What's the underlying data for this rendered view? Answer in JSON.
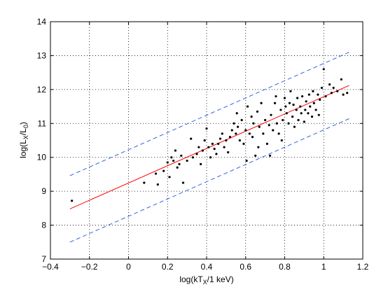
{
  "chart_data": {
    "type": "scatter",
    "xlabel": {
      "pre": "log(kT",
      "sub": "X",
      "post": "/1 keV)"
    },
    "ylabel": {
      "pre": "log(L",
      "sub1": "X",
      "mid": "/L",
      "sub2": "0",
      "post": ")"
    },
    "xlim": [
      -0.4,
      1.2
    ],
    "ylim": [
      7,
      14
    ],
    "xticks": [
      -0.4,
      -0.2,
      0,
      0.2,
      0.4,
      0.6,
      0.8,
      1,
      1.2
    ],
    "yticks": [
      7,
      8,
      9,
      10,
      11,
      12,
      13,
      14
    ],
    "xtick_labels": [
      "−0.4",
      "−0.2",
      "0",
      "0.2",
      "0.4",
      "0.6",
      "0.8",
      "1",
      "1.2"
    ],
    "ytick_labels": [
      "7",
      "8",
      "9",
      "10",
      "11",
      "12",
      "13",
      "14"
    ],
    "grid": true,
    "series": [
      {
        "kind": "points",
        "color": "#000000",
        "points": [
          [
            -0.29,
            8.72
          ],
          [
            0.08,
            9.25
          ],
          [
            0.14,
            9.52
          ],
          [
            0.15,
            9.2
          ],
          [
            0.18,
            9.6
          ],
          [
            0.2,
            9.85
          ],
          [
            0.21,
            9.42
          ],
          [
            0.22,
            10.0
          ],
          [
            0.23,
            9.9
          ],
          [
            0.24,
            10.2
          ],
          [
            0.25,
            9.7
          ],
          [
            0.26,
            9.8
          ],
          [
            0.27,
            10.05
          ],
          [
            0.28,
            9.25
          ],
          [
            0.3,
            9.9
          ],
          [
            0.32,
            10.55
          ],
          [
            0.33,
            10.0
          ],
          [
            0.35,
            10.1
          ],
          [
            0.36,
            10.3
          ],
          [
            0.37,
            9.8
          ],
          [
            0.38,
            10.2
          ],
          [
            0.39,
            10.5
          ],
          [
            0.4,
            10.85
          ],
          [
            0.41,
            10.3
          ],
          [
            0.42,
            10.0
          ],
          [
            0.43,
            10.4
          ],
          [
            0.44,
            10.25
          ],
          [
            0.45,
            10.1
          ],
          [
            0.46,
            10.4
          ],
          [
            0.47,
            10.55
          ],
          [
            0.48,
            10.7
          ],
          [
            0.49,
            10.3
          ],
          [
            0.5,
            10.5
          ],
          [
            0.51,
            10.15
          ],
          [
            0.52,
            10.6
          ],
          [
            0.53,
            10.8
          ],
          [
            0.54,
            11.0
          ],
          [
            0.55,
            10.7
          ],
          [
            0.555,
            11.3
          ],
          [
            0.56,
            10.9
          ],
          [
            0.57,
            10.5
          ],
          [
            0.58,
            11.1
          ],
          [
            0.59,
            10.4
          ],
          [
            0.6,
            10.8
          ],
          [
            0.605,
            9.9
          ],
          [
            0.61,
            11.5
          ],
          [
            0.62,
            10.7
          ],
          [
            0.63,
            11.2
          ],
          [
            0.635,
            10.6
          ],
          [
            0.64,
            11.0
          ],
          [
            0.65,
            10.05
          ],
          [
            0.66,
            11.35
          ],
          [
            0.665,
            10.3
          ],
          [
            0.67,
            10.9
          ],
          [
            0.68,
            11.6
          ],
          [
            0.69,
            10.7
          ],
          [
            0.7,
            11.1
          ],
          [
            0.71,
            10.4
          ],
          [
            0.72,
            10.95
          ],
          [
            0.725,
            10.05
          ],
          [
            0.73,
            11.25
          ],
          [
            0.74,
            10.8
          ],
          [
            0.75,
            11.6
          ],
          [
            0.755,
            11.8
          ],
          [
            0.76,
            11.0
          ],
          [
            0.77,
            10.7
          ],
          [
            0.78,
            11.4
          ],
          [
            0.785,
            10.5
          ],
          [
            0.79,
            11.1
          ],
          [
            0.8,
            11.75
          ],
          [
            0.805,
            11.5
          ],
          [
            0.81,
            11.3
          ],
          [
            0.82,
            11.0
          ],
          [
            0.825,
            11.6
          ],
          [
            0.83,
            11.95
          ],
          [
            0.84,
            11.2
          ],
          [
            0.845,
            11.55
          ],
          [
            0.85,
            10.9
          ],
          [
            0.86,
            11.4
          ],
          [
            0.865,
            11.75
          ],
          [
            0.87,
            11.1
          ],
          [
            0.88,
            11.5
          ],
          [
            0.885,
            11.3
          ],
          [
            0.89,
            11.8
          ],
          [
            0.9,
            11.05
          ],
          [
            0.905,
            11.4
          ],
          [
            0.91,
            11.65
          ],
          [
            0.92,
            11.3
          ],
          [
            0.925,
            11.85
          ],
          [
            0.93,
            11.5
          ],
          [
            0.94,
            11.2
          ],
          [
            0.945,
            11.95
          ],
          [
            0.95,
            11.6
          ],
          [
            0.96,
            11.4
          ],
          [
            0.97,
            11.85
          ],
          [
            0.975,
            11.25
          ],
          [
            0.98,
            11.7
          ],
          [
            0.99,
            12.05
          ],
          [
            1.0,
            12.6
          ],
          [
            1.01,
            11.8
          ],
          [
            1.03,
            12.15
          ],
          [
            1.04,
            11.9
          ],
          [
            1.05,
            12.05
          ],
          [
            1.07,
            11.95
          ],
          [
            1.09,
            12.3
          ],
          [
            1.1,
            11.85
          ],
          [
            1.12,
            11.9
          ]
        ]
      },
      {
        "kind": "line",
        "style": "solid",
        "color": "#ff0000",
        "x": [
          -0.3,
          1.13
        ],
        "y": [
          8.48,
          12.12
        ]
      },
      {
        "kind": "line",
        "style": "dashed",
        "color": "#3366dd",
        "x": [
          -0.3,
          1.13
        ],
        "y": [
          9.46,
          13.1
        ]
      },
      {
        "kind": "line",
        "style": "dashed",
        "color": "#3366dd",
        "x": [
          -0.3,
          1.13
        ],
        "y": [
          7.5,
          11.14
        ]
      }
    ]
  }
}
